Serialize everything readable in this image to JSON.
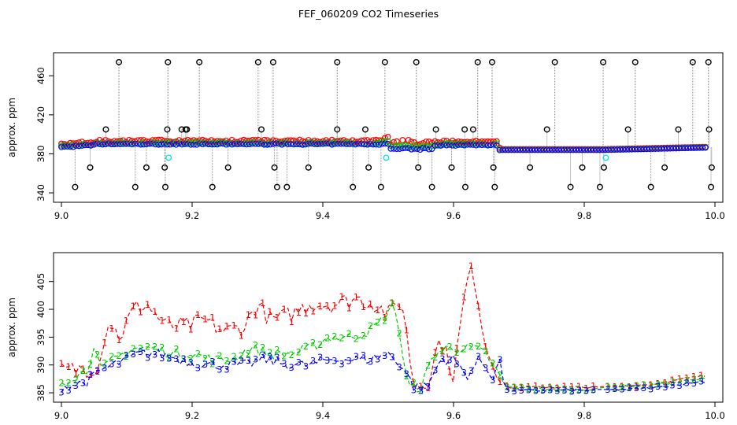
{
  "title": "FEF_060209  CO2 Timeseries",
  "colors": {
    "series1": "#ff0000",
    "series2": "#00cd00",
    "series3": "#0000ff",
    "excursion": "#000000",
    "flagged": "#00e5ee",
    "vertical": "#8c8c8c"
  },
  "chart_data": [
    {
      "type": "scatter",
      "ylabel": "approx. ppm",
      "xlim": [
        9.0,
        10.0
      ],
      "ylim": [
        336,
        478
      ],
      "xticks": [
        "9.0",
        "9.2",
        "9.4",
        "9.6",
        "9.8",
        "10.0"
      ],
      "xtick_values": [
        9.0,
        9.2,
        9.4,
        9.6,
        9.8,
        10.0
      ],
      "yticks": [
        "340",
        "380",
        "420",
        "460"
      ],
      "ytick_values": [
        340,
        380,
        420,
        460
      ],
      "excursions_high": [
        9.088,
        9.163,
        9.211,
        9.301,
        9.324,
        9.422,
        9.495,
        9.543,
        9.637,
        9.659,
        9.755,
        9.829,
        9.878,
        9.966,
        9.99
      ],
      "excursions_low": [
        9.021,
        9.113,
        9.159,
        9.231,
        9.33,
        9.345,
        9.446,
        9.489,
        9.567,
        9.618,
        9.663,
        9.779,
        9.824,
        9.902,
        9.994
      ],
      "excursions_mid_high": [
        9.068,
        9.162,
        9.184,
        9.192,
        9.19,
        9.306,
        9.422,
        9.465,
        9.573,
        9.617,
        9.63,
        9.743,
        9.867,
        9.944,
        9.991
      ],
      "excursions_mid_low": [
        9.044,
        9.13,
        9.158,
        9.255,
        9.326,
        9.378,
        9.47,
        9.546,
        9.597,
        9.661,
        9.717,
        9.797,
        9.83,
        9.923,
        9.995
      ],
      "flagged_points": [
        {
          "x": 9.164,
          "y": 376
        },
        {
          "x": 9.497,
          "y": 376
        },
        {
          "x": 9.833,
          "y": 376
        }
      ]
    },
    {
      "type": "line",
      "ylabel": "approx. ppm",
      "xlim": [
        9.0,
        10.0
      ],
      "ylim": [
        384.3,
        409.2
      ],
      "xticks": [
        "9.0",
        "9.2",
        "9.4",
        "9.6",
        "9.8",
        "10.0"
      ],
      "xtick_values": [
        9.0,
        9.2,
        9.4,
        9.6,
        9.8,
        10.0
      ],
      "yticks": [
        "385",
        "390",
        "395",
        "400",
        "405"
      ],
      "ytick_values": [
        385,
        390,
        395,
        400,
        405
      ],
      "series_labels": [
        "1",
        "2",
        "3"
      ],
      "series": [
        {
          "name": "1",
          "x": [
            9.0,
            9.05,
            9.06,
            9.07,
            9.09,
            9.11,
            9.13,
            9.16,
            9.19,
            9.22,
            9.25,
            9.28,
            9.3,
            9.32,
            9.35,
            9.38,
            9.42,
            9.45,
            9.48,
            9.5,
            9.52,
            9.54,
            9.56,
            9.58,
            9.6,
            9.62,
            9.63,
            9.65,
            9.68,
            9.75,
            9.82,
            9.83,
            9.9,
            9.98
          ],
          "values": [
            389,
            389.5,
            391,
            398,
            395,
            400,
            401,
            397,
            397,
            398,
            396,
            397,
            401,
            398,
            399,
            401,
            401,
            402,
            401,
            399,
            402,
            386,
            387,
            395,
            388,
            405,
            407,
            393,
            386,
            386,
            386,
            386,
            386.5,
            388
          ]
        },
        {
          "name": "2",
          "x": [
            9.0,
            9.04,
            9.05,
            9.06,
            9.08,
            9.11,
            9.14,
            9.17,
            9.2,
            9.23,
            9.26,
            9.29,
            9.32,
            9.35,
            9.38,
            9.41,
            9.44,
            9.47,
            9.49,
            9.51,
            9.53,
            9.55,
            9.57,
            9.59,
            9.61,
            9.63,
            9.65,
            9.68,
            9.75,
            9.82,
            9.83,
            9.9,
            9.98
          ],
          "values": [
            387,
            389,
            394,
            389,
            391,
            393,
            393,
            392,
            392,
            391,
            391,
            393,
            392,
            392,
            393,
            395,
            395,
            396,
            398,
            401,
            386,
            386,
            392,
            393,
            393,
            393,
            392,
            386,
            385.6,
            385.6,
            386,
            386.3,
            387.5
          ]
        },
        {
          "name": "3",
          "x": [
            9.0,
            9.04,
            9.06,
            9.08,
            9.1,
            9.12,
            9.15,
            9.18,
            9.22,
            9.25,
            9.28,
            9.31,
            9.35,
            9.38,
            9.41,
            9.44,
            9.47,
            9.5,
            9.52,
            9.54,
            9.56,
            9.58,
            9.6,
            9.62,
            9.64,
            9.66,
            9.67,
            9.68,
            9.75,
            9.82,
            9.83,
            9.9,
            9.98
          ],
          "values": [
            386,
            387,
            389,
            390,
            391,
            392,
            392,
            391,
            390,
            390,
            390,
            391,
            390,
            390,
            391,
            391,
            391,
            392,
            390,
            386,
            386,
            391,
            391,
            388,
            391,
            388,
            391,
            385.4,
            385.4,
            385.4,
            385.5,
            385.8,
            387
          ]
        }
      ]
    }
  ]
}
